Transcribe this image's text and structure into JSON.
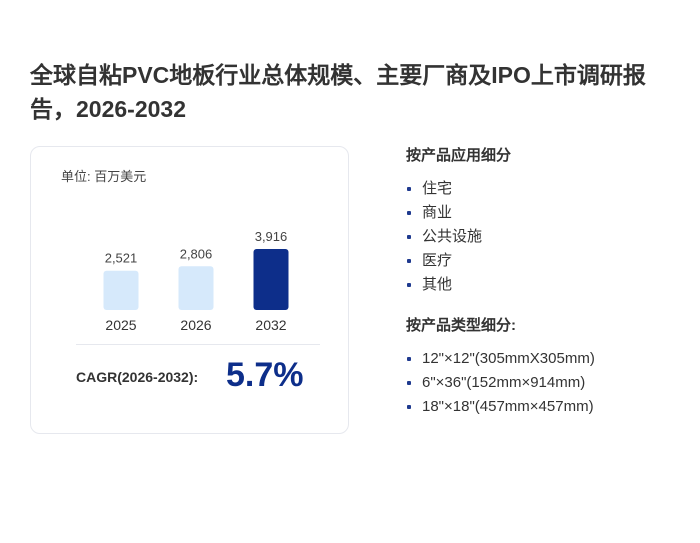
{
  "title": "全球自粘PVC地板行业总体规模、主要厂商及IPO上市调研报告，2026-2032",
  "card": {
    "unit_label": "单位: 百万美元",
    "cagr_label": "CAGR(2026-2032):",
    "cagr_value": "5.7%"
  },
  "chart_data": {
    "type": "bar",
    "categories": [
      "2025",
      "2026",
      "2032"
    ],
    "values": [
      2521,
      2806,
      3916
    ],
    "value_labels": [
      "2,521",
      "2,806",
      "3,916"
    ],
    "ylabel": "单位: 百万美元",
    "colors": [
      "#d6e9fb",
      "#d6e9fb",
      "#0d2e8a"
    ],
    "grid": false
  },
  "segments": [
    {
      "title": "按产品应用细分",
      "items": [
        "住宅",
        "商业",
        "公共设施",
        "医疗",
        "其他"
      ]
    },
    {
      "title": "按产品类型细分:",
      "items": [
        "12\"×12\"(305mmX305mm)",
        "6\"×36\"(152mm×914mm)",
        "18\"×18\"(457mm×457mm)"
      ]
    }
  ]
}
